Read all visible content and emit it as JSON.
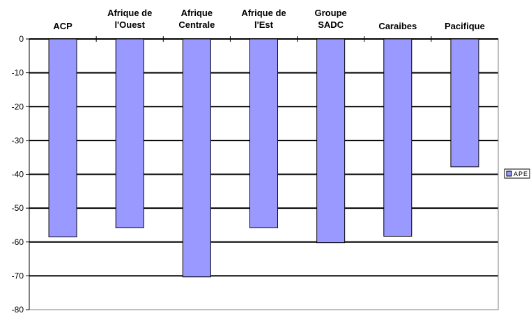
{
  "chart_data": {
    "type": "bar",
    "categories": [
      [
        "ACP"
      ],
      [
        "Afrique de",
        "l'Ouest"
      ],
      [
        "Afrique",
        "Centrale"
      ],
      [
        "Afrique de",
        "l'Est"
      ],
      [
        "Groupe",
        "SADC"
      ],
      [
        "Caraibes"
      ],
      [
        "Pacifique"
      ]
    ],
    "series": [
      {
        "name": "APE",
        "values": [
          -58.5,
          -55.8,
          -70.3,
          -55.8,
          -60.2,
          -58.3,
          -37.8
        ],
        "color": "#9999ff"
      }
    ],
    "ylim": [
      -80,
      0
    ],
    "yticks": [
      0,
      -10,
      -20,
      -30,
      -40,
      -50,
      -60,
      -70,
      -80
    ],
    "grid": true,
    "legend_position": "right",
    "title": "",
    "xlabel": "",
    "ylabel": ""
  }
}
